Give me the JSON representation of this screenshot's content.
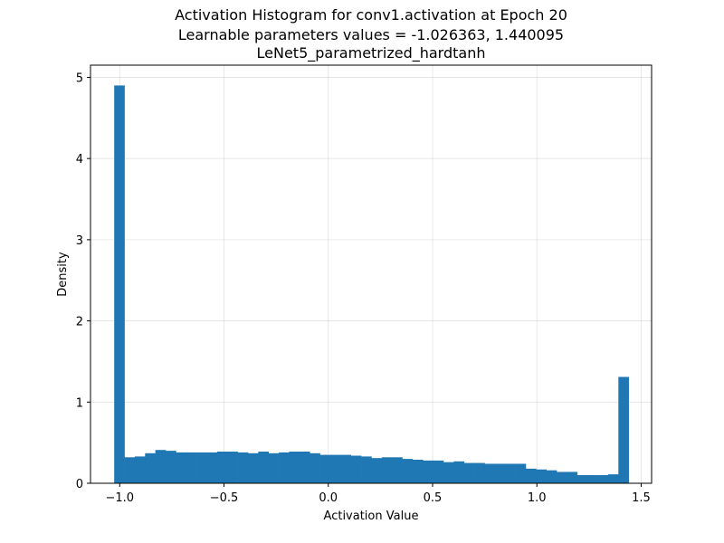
{
  "chart_data": {
    "type": "bar",
    "title_lines": [
      "Activation Histogram for conv1.activation at Epoch 20",
      "Learnable parameters values = -1.026363, 1.440095",
      "LeNet5_parametrized_hardtanh"
    ],
    "xlabel": "Activation Value",
    "ylabel": "Density",
    "xlim": [
      -1.14,
      1.55
    ],
    "ylim": [
      0,
      5.15
    ],
    "xticks": [
      -1.0,
      -0.5,
      0.0,
      0.5,
      1.0,
      1.5
    ],
    "xtick_labels": [
      "−1.0",
      "−0.5",
      "0.0",
      "0.5",
      "1.0",
      "1.5"
    ],
    "yticks": [
      0,
      1,
      2,
      3,
      4,
      5
    ],
    "ytick_labels": [
      "0",
      "1",
      "2",
      "3",
      "4",
      "5"
    ],
    "grid": true,
    "bar_color": "#1f77b4",
    "bin_range": [
      -1.026363,
      1.440095
    ],
    "bin_count": 50,
    "values": [
      4.9,
      0.32,
      0.33,
      0.37,
      0.41,
      0.4,
      0.38,
      0.38,
      0.38,
      0.38,
      0.39,
      0.39,
      0.38,
      0.37,
      0.39,
      0.37,
      0.38,
      0.39,
      0.39,
      0.37,
      0.35,
      0.35,
      0.35,
      0.34,
      0.33,
      0.31,
      0.32,
      0.32,
      0.3,
      0.29,
      0.28,
      0.28,
      0.26,
      0.27,
      0.25,
      0.25,
      0.24,
      0.24,
      0.24,
      0.24,
      0.18,
      0.17,
      0.16,
      0.14,
      0.14,
      0.1,
      0.1,
      0.1,
      0.11,
      1.31
    ]
  }
}
